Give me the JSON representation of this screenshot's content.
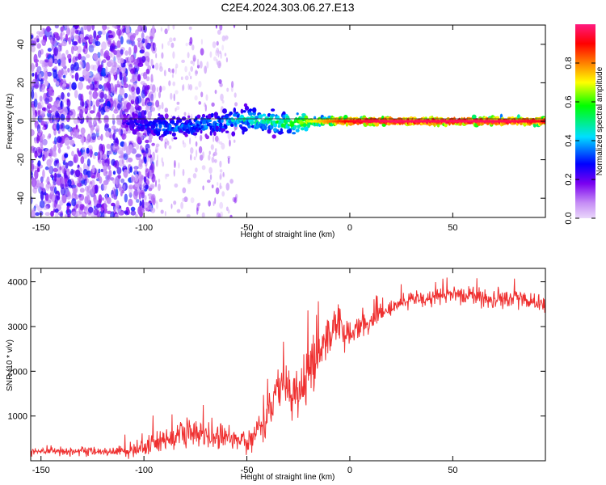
{
  "figure_title": "C2E4.2024.303.06.27.E13",
  "chart_data": [
    {
      "type": "heatmap",
      "title": "C2E4.2024.303.06.27.E13",
      "xlabel": "Height of straight line (km)",
      "ylabel": "Frequency (Hz)",
      "xlim": [
        -155,
        95
      ],
      "ylim": [
        -50,
        50
      ],
      "x_ticks": [
        -150,
        -100,
        -50,
        0,
        50
      ],
      "y_ticks": [
        -40,
        -20,
        0,
        20,
        40
      ],
      "grid": false,
      "colorbar": {
        "label": "Normalized spectral amplitude",
        "range": [
          0,
          1
        ],
        "ticks": [
          0.0,
          0.2,
          0.4,
          0.6,
          0.8
        ],
        "colors": [
          "#ead8fb",
          "#7a00f0",
          "#0000ff",
          "#00dfff",
          "#00ff00",
          "#ffff00",
          "#ff8000",
          "#ff0000",
          "#ff1a80"
        ]
      },
      "ridge": {
        "x": [
          -110,
          -100,
          -90,
          -80,
          -70,
          -60,
          -50,
          -40,
          -30,
          -20,
          -10,
          0,
          10,
          20,
          40,
          60,
          80,
          95
        ],
        "frequency": [
          -1,
          -2,
          -3,
          -3,
          -2,
          0,
          1,
          0,
          -1,
          0,
          0,
          0,
          0,
          0,
          0,
          0,
          0,
          0
        ],
        "amplitude": [
          0.15,
          0.25,
          0.3,
          0.3,
          0.32,
          0.35,
          0.4,
          0.45,
          0.5,
          0.6,
          0.75,
          0.9,
          0.95,
          0.97,
          0.96,
          0.97,
          0.95,
          0.9
        ]
      },
      "noise_region_x": [
        -155,
        -95
      ],
      "sparse_noise_region_x": [
        -95,
        -55
      ]
    },
    {
      "type": "line",
      "xlabel": "Height of straight line (km)",
      "ylabel": "SNR (10 * v/v)",
      "xlim": [
        -155,
        95
      ],
      "ylim": [
        0,
        4300
      ],
      "x_ticks": [
        -150,
        -100,
        -50,
        0,
        50
      ],
      "y_ticks": [
        1000,
        2000,
        3000,
        4000
      ],
      "grid": false,
      "color": "#ef3030",
      "envelope": {
        "x": [
          -155,
          -140,
          -120,
          -105,
          -100,
          -90,
          -80,
          -70,
          -60,
          -50,
          -40,
          -35,
          -30,
          -25,
          -20,
          -15,
          -10,
          -5,
          0,
          5,
          10,
          15,
          20,
          25,
          30,
          40,
          50,
          60,
          70,
          80,
          90,
          95
        ],
        "mean": [
          200,
          200,
          200,
          220,
          300,
          450,
          600,
          550,
          500,
          400,
          1000,
          1500,
          1800,
          1400,
          2000,
          2400,
          2700,
          3000,
          2900,
          3000,
          3100,
          3300,
          3400,
          3500,
          3600,
          3650,
          3700,
          3700,
          3600,
          3650,
          3550,
          3500
        ],
        "spread": [
          150,
          150,
          160,
          220,
          300,
          400,
          500,
          450,
          400,
          350,
          700,
          900,
          900,
          1000,
          1000,
          900,
          700,
          600,
          500,
          450,
          400,
          350,
          300,
          350,
          350,
          300,
          300,
          350,
          400,
          350,
          300,
          300
        ]
      }
    }
  ]
}
